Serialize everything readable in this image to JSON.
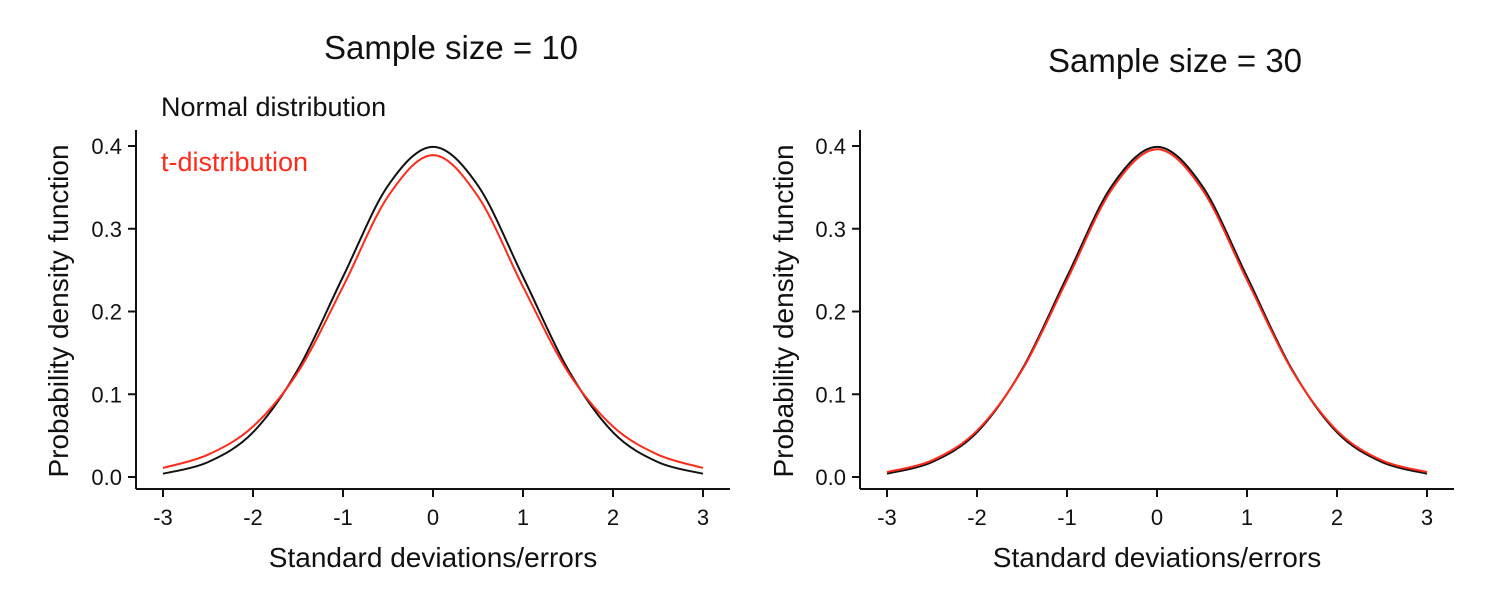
{
  "chart_data": [
    {
      "type": "line",
      "title": "Sample size = 10",
      "xlabel": "Standard deviations/errors",
      "ylabel": "Probability density function",
      "xlim": [
        -3,
        3
      ],
      "ylim": [
        0,
        0.4
      ],
      "xticks": [
        -3,
        -2,
        -1,
        0,
        1,
        2,
        3
      ],
      "yticks": [
        "0.0",
        "0.1",
        "0.2",
        "0.3",
        "0.4"
      ],
      "grid": false,
      "legend": "top-left",
      "series": [
        {
          "name": "Normal distribution",
          "color": "#111111",
          "x": [
            -3,
            -2.5,
            -2,
            -1.5,
            -1,
            -0.5,
            0,
            0.5,
            1,
            1.5,
            2,
            2.5,
            3
          ],
          "y": [
            0.004,
            0.018,
            0.054,
            0.13,
            0.242,
            0.352,
            0.399,
            0.352,
            0.242,
            0.13,
            0.054,
            0.018,
            0.004
          ]
        },
        {
          "name": "t-distribution",
          "color": "#ff2a1a",
          "x": [
            -3,
            -2.5,
            -2,
            -1.5,
            -1,
            -0.5,
            0,
            0.5,
            1,
            1.5,
            2,
            2.5,
            3
          ],
          "y": [
            0.011,
            0.027,
            0.061,
            0.127,
            0.23,
            0.339,
            0.389,
            0.339,
            0.23,
            0.127,
            0.061,
            0.027,
            0.011
          ]
        }
      ]
    },
    {
      "type": "line",
      "title": "Sample size = 30",
      "xlabel": "Standard deviations/errors",
      "ylabel": "Probability density function",
      "xlim": [
        -3,
        3
      ],
      "ylim": [
        0,
        0.4
      ],
      "xticks": [
        -3,
        -2,
        -1,
        0,
        1,
        2,
        3
      ],
      "yticks": [
        "0.0",
        "0.1",
        "0.2",
        "0.3",
        "0.4"
      ],
      "grid": false,
      "series": [
        {
          "color": "#111111",
          "x": [
            -3,
            -2.5,
            -2,
            -1.5,
            -1,
            -0.5,
            0,
            0.5,
            1,
            1.5,
            2,
            2.5,
            3
          ],
          "y": [
            0.004,
            0.018,
            0.054,
            0.13,
            0.242,
            0.352,
            0.399,
            0.352,
            0.242,
            0.13,
            0.054,
            0.018,
            0.004
          ]
        },
        {
          "color": "#ff2a1a",
          "x": [
            -3,
            -2.5,
            -2,
            -1.5,
            -1,
            -0.5,
            0,
            0.5,
            1,
            1.5,
            2,
            2.5,
            3
          ],
          "y": [
            0.006,
            0.02,
            0.056,
            0.129,
            0.238,
            0.348,
            0.396,
            0.348,
            0.238,
            0.129,
            0.056,
            0.02,
            0.006
          ]
        }
      ]
    }
  ]
}
